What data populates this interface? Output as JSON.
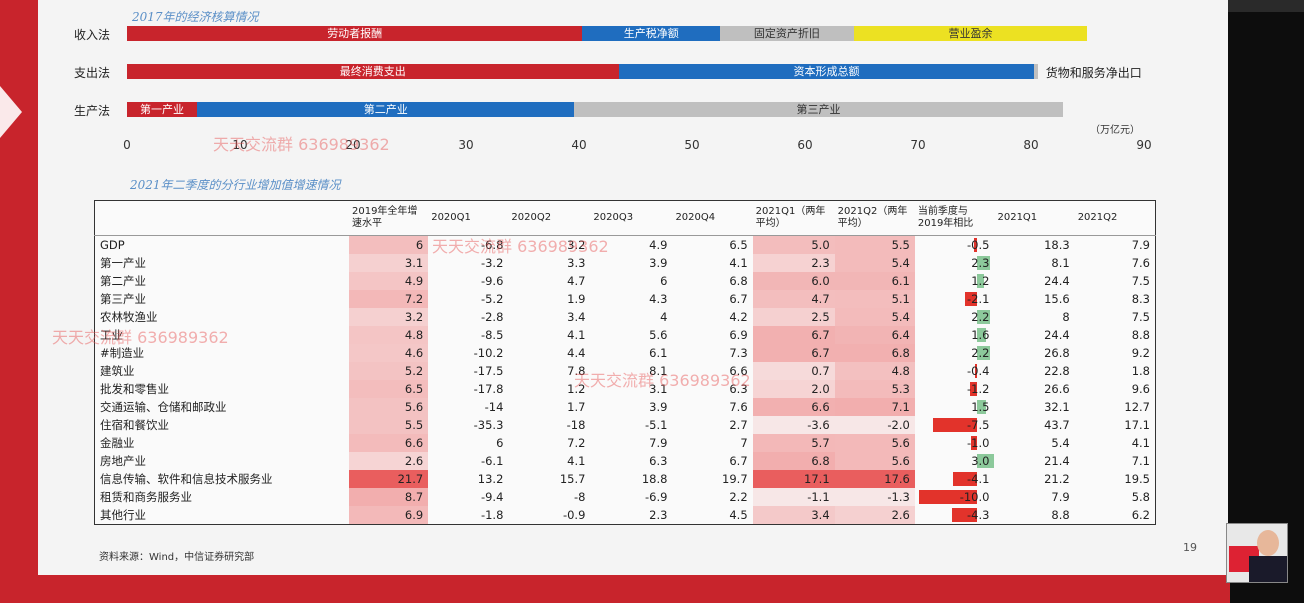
{
  "top_section": {
    "title": "2017年的经济核算情况",
    "unit": "（万亿元）",
    "axis_ticks": [
      "0",
      "10",
      "20",
      "30",
      "40",
      "50",
      "60",
      "70",
      "80",
      "90"
    ],
    "rows": [
      {
        "label": "收入法",
        "segments": [
          {
            "label": "劳动者报酬",
            "start": 0,
            "end": 40.3,
            "color": "#c8242c"
          },
          {
            "label": "生产税净额",
            "start": 40.3,
            "end": 52.5,
            "color": "#1f6dbf"
          },
          {
            "label": "固定资产折旧",
            "start": 52.5,
            "end": 64.3,
            "color": "#bfbfbf"
          },
          {
            "label": "营业盈余",
            "start": 64.3,
            "end": 85,
            "color": "#ece122"
          }
        ]
      },
      {
        "label": "支出法",
        "segments": [
          {
            "label": "最终消费支出",
            "start": 0,
            "end": 43.5,
            "color": "#c8242c"
          },
          {
            "label": "资本形成总额",
            "start": 43.5,
            "end": 80.3,
            "color": "#1f6dbf"
          },
          {
            "label": "",
            "start": 80.3,
            "end": 80.6,
            "color": "#bfbfbf"
          }
        ],
        "ext_label": "货物和服务净出口"
      },
      {
        "label": "生产法",
        "segments": [
          {
            "label": "第一产业",
            "start": 0,
            "end": 6.2,
            "color": "#c8242c"
          },
          {
            "label": "第二产业",
            "start": 6.2,
            "end": 39.6,
            "color": "#1f6dbf"
          },
          {
            "label": "第三产业",
            "start": 39.6,
            "end": 82.8,
            "color": "#bfbfbf"
          }
        ]
      }
    ]
  },
  "table_section": {
    "title": "2021年二季度的分行业增加值增速情况",
    "columns": [
      "",
      "2019年全年增速水平",
      "2020Q1",
      "2020Q2",
      "2020Q3",
      "2020Q4",
      "2021Q1（两年平均）",
      "2021Q2（两年平均）",
      "当前季度与2019年相比",
      "2021Q1",
      "2021Q2"
    ],
    "rows": [
      {
        "name": "GDP",
        "v": [
          "6",
          "-6.8",
          "3.2",
          "4.9",
          "6.5",
          "5.0",
          "5.5",
          "-0.5",
          "18.3",
          "7.9"
        ]
      },
      {
        "name": "第一产业",
        "v": [
          "3.1",
          "-3.2",
          "3.3",
          "3.9",
          "4.1",
          "2.3",
          "5.4",
          "2.3",
          "8.1",
          "7.6"
        ]
      },
      {
        "name": "第二产业",
        "v": [
          "4.9",
          "-9.6",
          "4.7",
          "6",
          "6.8",
          "6.0",
          "6.1",
          "1.2",
          "24.4",
          "7.5"
        ]
      },
      {
        "name": "第三产业",
        "v": [
          "7.2",
          "-5.2",
          "1.9",
          "4.3",
          "6.7",
          "4.7",
          "5.1",
          "-2.1",
          "15.6",
          "8.3"
        ]
      },
      {
        "name": "农林牧渔业",
        "v": [
          "3.2",
          "-2.8",
          "3.4",
          "4",
          "4.2",
          "2.5",
          "5.4",
          "2.2",
          "8",
          "7.5"
        ]
      },
      {
        "name": "工业",
        "v": [
          "4.8",
          "-8.5",
          "4.1",
          "5.6",
          "6.9",
          "6.7",
          "6.4",
          "1.6",
          "24.4",
          "8.8"
        ]
      },
      {
        "name": "#制造业",
        "v": [
          "4.6",
          "-10.2",
          "4.4",
          "6.1",
          "7.3",
          "6.7",
          "6.8",
          "2.2",
          "26.8",
          "9.2"
        ]
      },
      {
        "name": "建筑业",
        "v": [
          "5.2",
          "-17.5",
          "7.8",
          "8.1",
          "6.6",
          "0.7",
          "4.8",
          "-0.4",
          "22.8",
          "1.8"
        ]
      },
      {
        "name": "批发和零售业",
        "v": [
          "6.5",
          "-17.8",
          "1.2",
          "3.1",
          "6.3",
          "2.0",
          "5.3",
          "-1.2",
          "26.6",
          "9.6"
        ]
      },
      {
        "name": "交通运输、仓储和邮政业",
        "v": [
          "5.6",
          "-14",
          "1.7",
          "3.9",
          "7.6",
          "6.6",
          "7.1",
          "1.5",
          "32.1",
          "12.7"
        ]
      },
      {
        "name": "住宿和餐饮业",
        "v": [
          "5.5",
          "-35.3",
          "-18",
          "-5.1",
          "2.7",
          "-3.6",
          "-2.0",
          "-7.5",
          "43.7",
          "17.1"
        ]
      },
      {
        "name": "金融业",
        "v": [
          "6.6",
          "6",
          "7.2",
          "7.9",
          "7",
          "5.7",
          "5.6",
          "-1.0",
          "5.4",
          "4.1"
        ]
      },
      {
        "name": "房地产业",
        "v": [
          "2.6",
          "-6.1",
          "4.1",
          "6.3",
          "6.7",
          "6.8",
          "5.6",
          "3.0",
          "21.4",
          "7.1"
        ]
      },
      {
        "name": "信息传输、软件和信息技术服务业",
        "v": [
          "21.7",
          "13.2",
          "15.7",
          "18.8",
          "19.7",
          "17.1",
          "17.6",
          "-4.1",
          "21.2",
          "19.5"
        ]
      },
      {
        "name": "租赁和商务服务业",
        "v": [
          "8.7",
          "-9.4",
          "-8",
          "-6.9",
          "2.2",
          "-1.1",
          "-1.3",
          "-10.0",
          "7.9",
          "5.8"
        ]
      },
      {
        "name": "其他行业",
        "v": [
          "6.9",
          "-1.8",
          "-0.9",
          "2.3",
          "4.5",
          "3.4",
          "2.6",
          "-4.3",
          "8.8",
          "6.2"
        ]
      }
    ]
  },
  "source": "资料来源：Wind，中信证券研究部",
  "page_number": "19",
  "watermark": "天天交流群 636989362",
  "chart_data": [
    {
      "type": "bar",
      "title": "2017年的经济核算情况",
      "ylabel": "（万亿元）",
      "categories": [
        "收入法",
        "支出法",
        "生产法"
      ],
      "xlim": [
        0,
        90
      ],
      "series": [
        {
          "name": "收入法",
          "segments": {
            "劳动者报酬": 40.3,
            "生产税净额": 12.2,
            "固定资产折旧": 11.8,
            "营业盈余": 20.7
          }
        },
        {
          "name": "支出法",
          "segments": {
            "最终消费支出": 43.5,
            "资本形成总额": 36.8,
            "货物和服务净出口": 0.3
          }
        },
        {
          "name": "生产法",
          "segments": {
            "第一产业": 6.2,
            "第二产业": 33.4,
            "第三产业": 43.2
          }
        }
      ]
    },
    {
      "type": "table",
      "title": "2021年二季度的分行业增加值增速情况"
    }
  ],
  "colors": {
    "red": "#c8242c",
    "blue": "#1f6dbf",
    "grey": "#bfbfbf",
    "yellow": "#ece122",
    "heat": "#ec6a6a",
    "pos_bar": "#8cc99b",
    "neg_bar": "#e2332b"
  }
}
